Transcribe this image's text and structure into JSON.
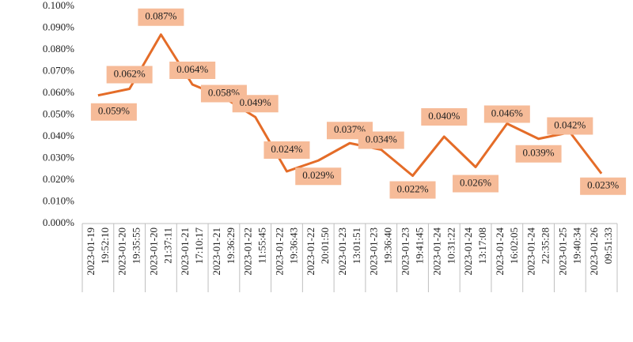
{
  "chart_data": {
    "type": "line",
    "categories": [
      [
        "2023-01-19",
        "19:52:10"
      ],
      [
        "2023-01-20",
        "19:35:55"
      ],
      [
        "2023-01-20",
        "21:37:11"
      ],
      [
        "2023-01-21",
        "17:10:17"
      ],
      [
        "2023-01-21",
        "19:36:29"
      ],
      [
        "2023-01-22",
        "11:55:45"
      ],
      [
        "2023-01-22",
        "19:36:43"
      ],
      [
        "2023-01-22",
        "20:01:50"
      ],
      [
        "2023-01-23",
        "13:01:51"
      ],
      [
        "2023-01-23",
        "19:36:40"
      ],
      [
        "2023-01-23",
        "19:41:45"
      ],
      [
        "2023-01-24",
        "10:31:22"
      ],
      [
        "2023-01-24",
        "13:17:08"
      ],
      [
        "2023-01-24",
        "16:02:05"
      ],
      [
        "2023-01-24",
        "22:35:28"
      ],
      [
        "2023-01-25",
        "19:40:34"
      ],
      [
        "2023-01-26",
        "09:51:33"
      ]
    ],
    "values": [
      0.059,
      0.062,
      0.087,
      0.064,
      0.058,
      0.049,
      0.024,
      0.029,
      0.037,
      0.034,
      0.022,
      0.04,
      0.026,
      0.046,
      0.039,
      0.042,
      0.023
    ],
    "value_labels": [
      "0.059%",
      "0.062%",
      "0.087%",
      "0.064%",
      "0.058%",
      "0.049%",
      "0.024%",
      "0.029%",
      "0.037%",
      "0.034%",
      "0.022%",
      "0.040%",
      "0.026%",
      "0.046%",
      "0.039%",
      "0.042%",
      "0.023%"
    ],
    "color": "#e46c28",
    "label_color": "#f6bb98",
    "ylim": [
      0,
      0.1
    ],
    "yticks": [
      {
        "value": 0,
        "label": "0.000%"
      },
      {
        "value": 0.01,
        "label": "0.010%"
      },
      {
        "value": 0.02,
        "label": "0.020%"
      },
      {
        "value": 0.03,
        "label": "0.030%"
      },
      {
        "value": 0.04,
        "label": "0.040%"
      },
      {
        "value": 0.05,
        "label": "0.050%"
      },
      {
        "value": 0.06,
        "label": "0.060%"
      },
      {
        "value": 0.07,
        "label": "0.070%"
      },
      {
        "value": 0.08,
        "label": "0.080%"
      },
      {
        "value": 0.09,
        "label": "0.090%"
      },
      {
        "value": 0.1,
        "label": "0.100%"
      }
    ],
    "grid": false
  }
}
